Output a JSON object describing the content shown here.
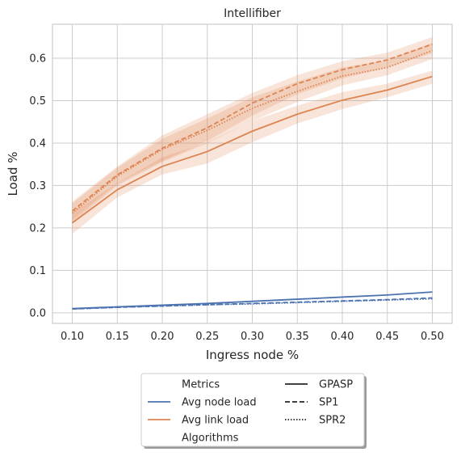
{
  "chart_data": {
    "type": "line",
    "title": "Intellifiber",
    "xlabel": "Ingress node %",
    "ylabel": "Load %",
    "x": [
      0.1,
      0.15,
      0.2,
      0.25,
      0.3,
      0.35,
      0.4,
      0.45,
      0.5
    ],
    "x_tick_labels": [
      "0.10",
      "0.15",
      "0.20",
      "0.25",
      "0.30",
      "0.35",
      "0.40",
      "0.45",
      "0.50"
    ],
    "y_ticks": [
      0.0,
      0.1,
      0.2,
      0.3,
      0.4,
      0.5,
      0.6
    ],
    "y_tick_labels": [
      "0.0",
      "0.1",
      "0.2",
      "0.3",
      "0.4",
      "0.5",
      "0.6"
    ],
    "xlim": [
      0.078,
      0.522
    ],
    "ylim": [
      -0.025,
      0.68
    ],
    "grid": true,
    "series": [
      {
        "metric": "Avg node load",
        "algorithm": "GPASP",
        "color": "#4c72b0",
        "style": "solid",
        "values": [
          0.01,
          0.014,
          0.018,
          0.022,
          0.027,
          0.032,
          0.037,
          0.042,
          0.049
        ]
      },
      {
        "metric": "Avg node load",
        "algorithm": "SP1",
        "color": "#4c72b0",
        "style": "dashed",
        "values": [
          0.009,
          0.013,
          0.016,
          0.019,
          0.022,
          0.025,
          0.028,
          0.031,
          0.035
        ]
      },
      {
        "metric": "Avg node load",
        "algorithm": "SPR2",
        "color": "#4c72b0",
        "style": "dotted",
        "values": [
          0.009,
          0.013,
          0.016,
          0.019,
          0.021,
          0.024,
          0.027,
          0.03,
          0.033
        ]
      },
      {
        "metric": "Avg link load",
        "algorithm": "GPASP",
        "color": "#dd8452",
        "style": "solid",
        "values": [
          0.212,
          0.29,
          0.345,
          0.38,
          0.428,
          0.468,
          0.501,
          0.525,
          0.557
        ],
        "ci_lower": [
          0.186,
          0.272,
          0.326,
          0.352,
          0.402,
          0.446,
          0.48,
          0.508,
          0.54
        ],
        "ci_upper": [
          0.236,
          0.306,
          0.366,
          0.402,
          0.452,
          0.488,
          0.52,
          0.54,
          0.571
        ]
      },
      {
        "metric": "Avg link load",
        "algorithm": "SP1",
        "color": "#dd8452",
        "style": "dashed",
        "values": [
          0.24,
          0.325,
          0.388,
          0.436,
          0.494,
          0.54,
          0.573,
          0.596,
          0.633
        ],
        "ci_lower": [
          0.218,
          0.305,
          0.358,
          0.405,
          0.465,
          0.515,
          0.552,
          0.578,
          0.612
        ],
        "ci_upper": [
          0.262,
          0.345,
          0.418,
          0.468,
          0.518,
          0.56,
          0.593,
          0.613,
          0.65
        ]
      },
      {
        "metric": "Avg link load",
        "algorithm": "SPR2",
        "color": "#dd8452",
        "style": "dotted",
        "values": [
          0.235,
          0.322,
          0.385,
          0.43,
          0.482,
          0.522,
          0.558,
          0.578,
          0.618
        ],
        "ci_lower": [
          0.212,
          0.3,
          0.355,
          0.4,
          0.452,
          0.497,
          0.536,
          0.56,
          0.598
        ],
        "ci_upper": [
          0.258,
          0.342,
          0.41,
          0.458,
          0.508,
          0.545,
          0.578,
          0.595,
          0.636
        ]
      }
    ],
    "legend": {
      "placement": "bottom-center",
      "col1": [
        {
          "label": "Metrics",
          "kind": "header"
        },
        {
          "label": "Avg node load",
          "kind": "line",
          "color": "#4c72b0",
          "style": "solid"
        },
        {
          "label": "Avg link load",
          "kind": "line",
          "color": "#dd8452",
          "style": "solid"
        },
        {
          "label": "Algorithms",
          "kind": "header"
        }
      ],
      "col2": [
        {
          "label": "GPASP",
          "kind": "line",
          "color": "#262626",
          "style": "solid"
        },
        {
          "label": "SP1",
          "kind": "line",
          "color": "#262626",
          "style": "dashed"
        },
        {
          "label": "SPR2",
          "kind": "line",
          "color": "#262626",
          "style": "dotted"
        }
      ]
    }
  }
}
